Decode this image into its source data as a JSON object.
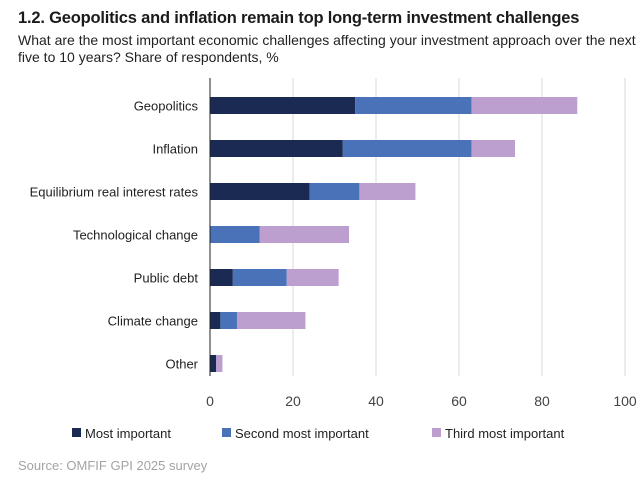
{
  "chart_data": {
    "type": "bar",
    "orientation": "horizontal",
    "stacked": true,
    "title": "1.2. Geopolitics and inflation remain top long-term investment challenges",
    "subtitle": "What are the most important economic challenges affecting your investment approach over the next five to 10 years? Share of respondents, %",
    "categories": [
      "Geopolitics",
      "Inflation",
      "Equilibrium real interest rates",
      "Technological change",
      "Public debt",
      "Climate change",
      "Other"
    ],
    "series": [
      {
        "name": "Most important",
        "color": "#1b2a52",
        "values": [
          35,
          32,
          24,
          0,
          5.5,
          2.5,
          1.5
        ]
      },
      {
        "name": "Second most important",
        "color": "#4a72b8",
        "values": [
          28,
          31,
          12,
          12,
          13,
          4,
          0
        ]
      },
      {
        "name": "Third most important",
        "color": "#bc9fcf",
        "values": [
          25.5,
          10.5,
          13.5,
          21.5,
          12.5,
          16.5,
          1.5
        ]
      }
    ],
    "xlim": [
      0,
      100
    ],
    "xticks": [
      0,
      20,
      40,
      60,
      80,
      100
    ],
    "xlabel": "",
    "ylabel": "",
    "grid": "vertical",
    "legend": "bottom",
    "source": "Source: OMFIF GPI 2025 survey"
  }
}
